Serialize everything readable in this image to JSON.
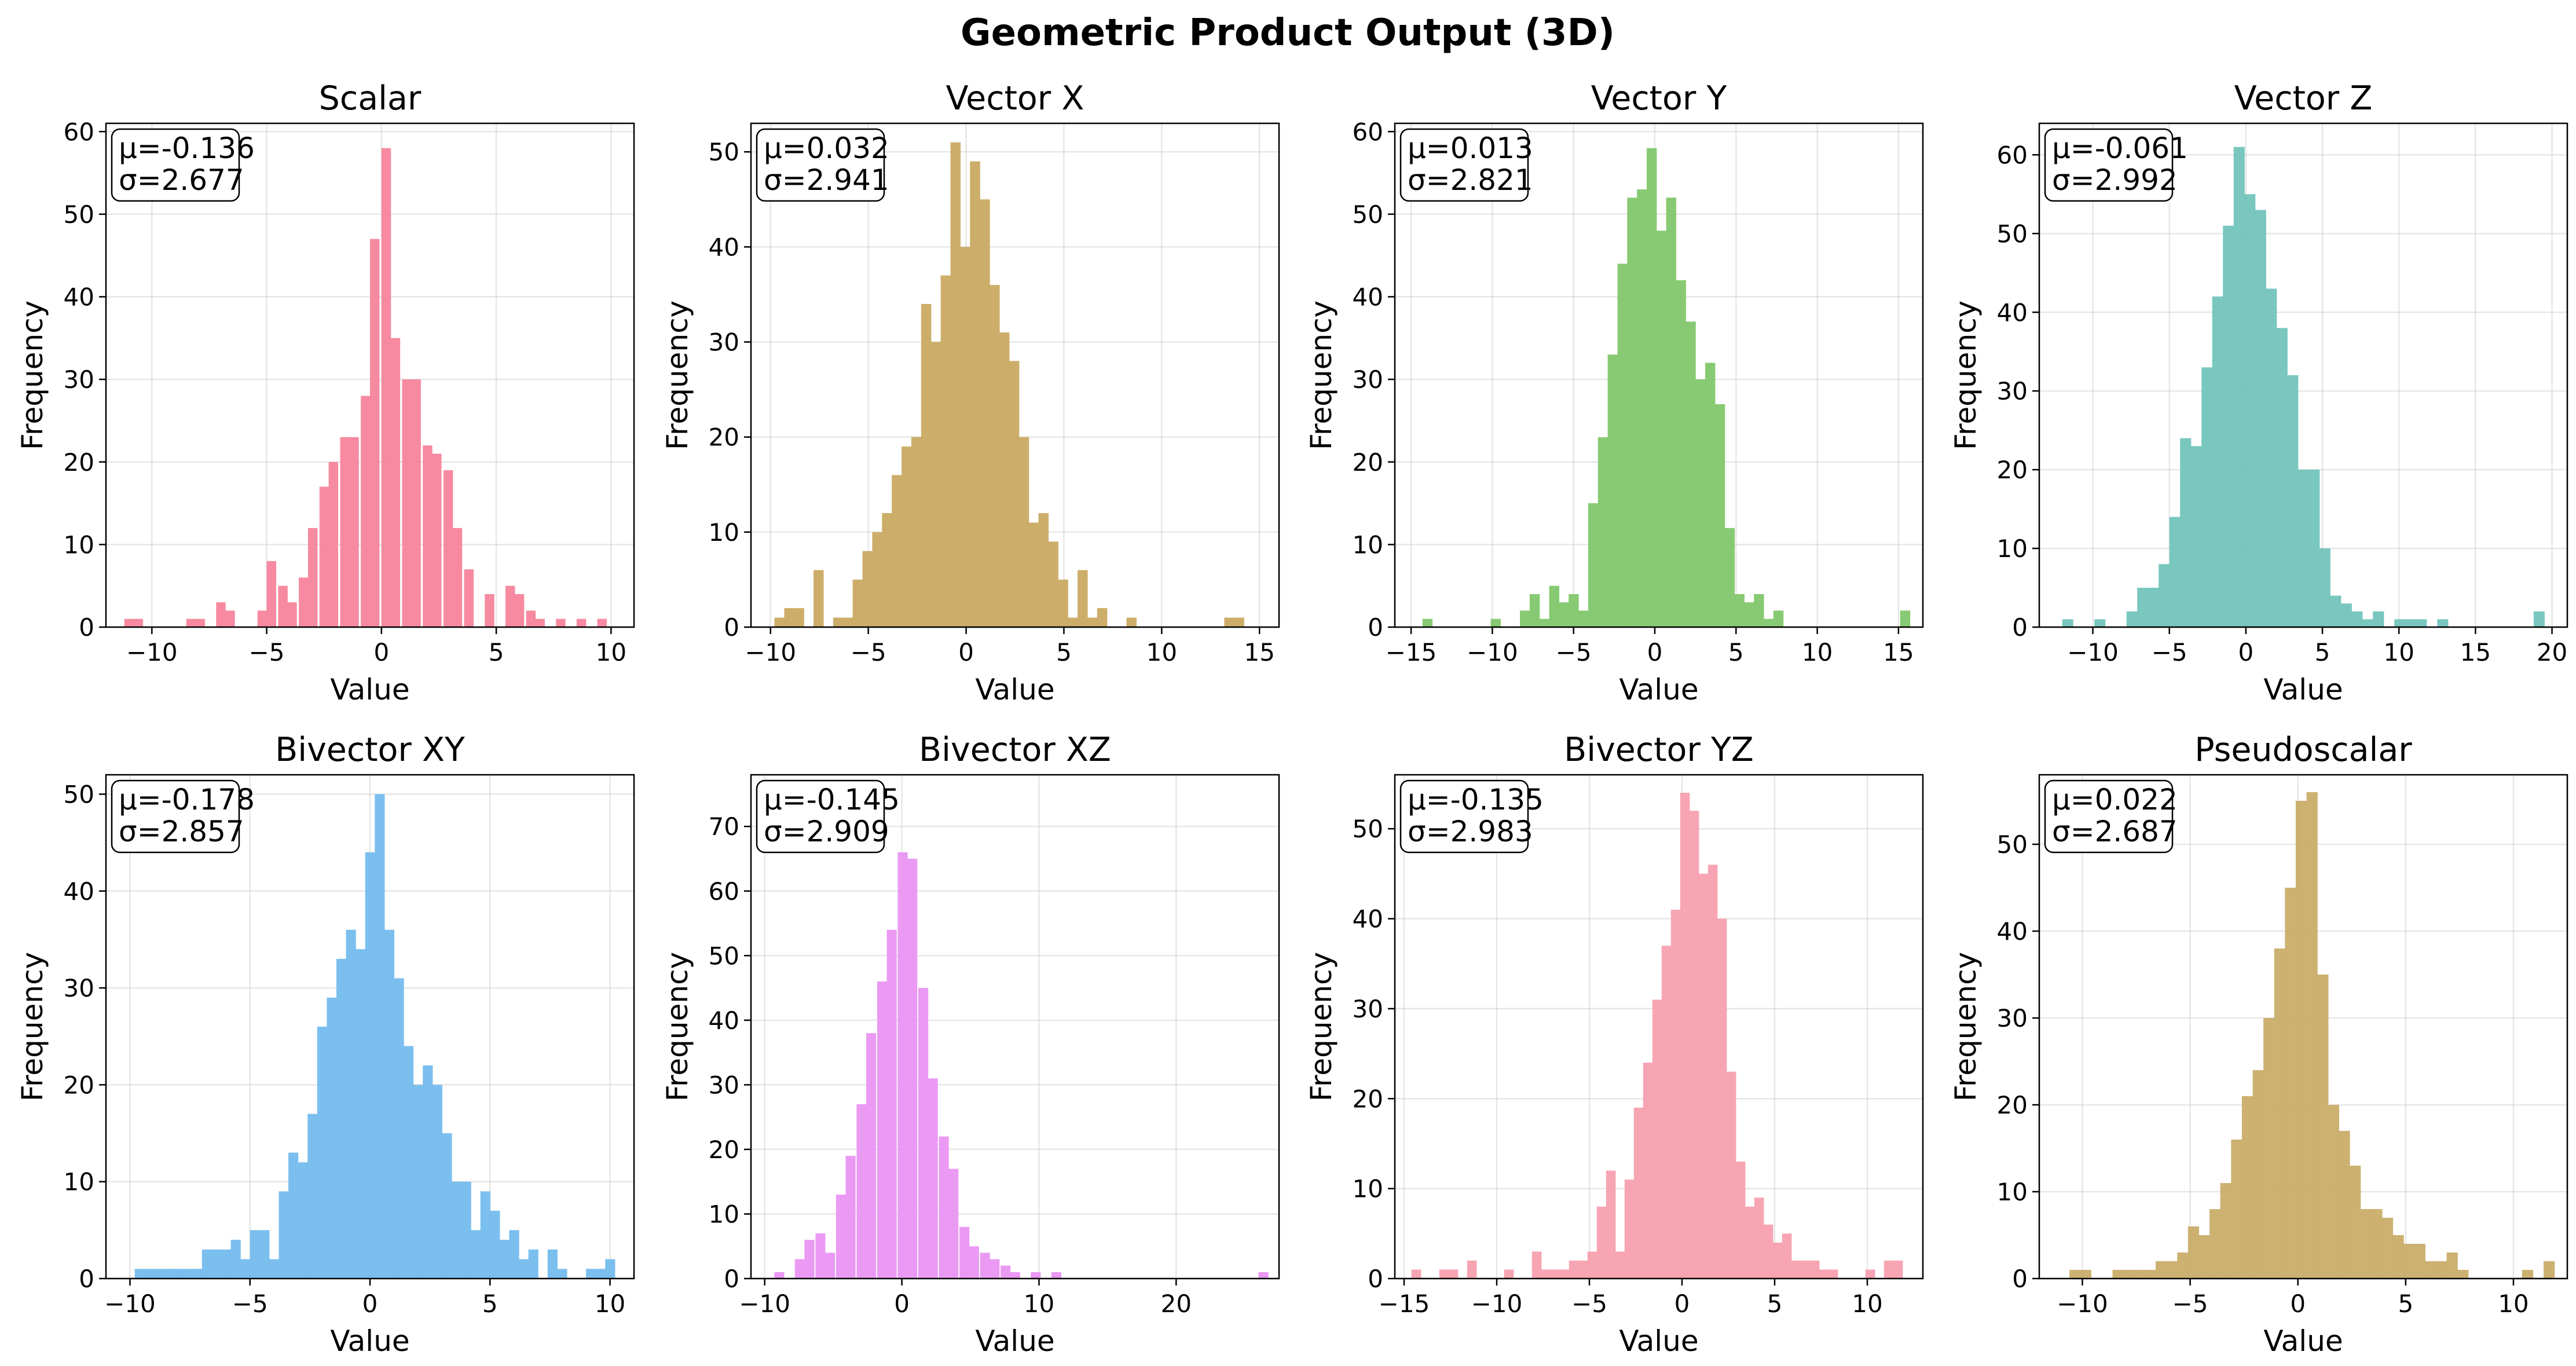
{
  "chart_data": [
    {
      "type": "bar",
      "panel": "histogram",
      "title": "Scalar",
      "xlabel": "Value",
      "ylabel": "Frequency",
      "color": "#F7849B",
      "xlim": [
        -12,
        11
      ],
      "ylim": [
        0,
        61
      ],
      "xticks": [
        -10,
        -5,
        0,
        5,
        10
      ],
      "yticks": [
        0,
        10,
        20,
        30,
        40,
        50,
        60
      ],
      "x": [
        -11.2,
        -10.8,
        -10.3,
        -9.9,
        -9.4,
        -9,
        -8.5,
        -8.1,
        -7.6,
        -7.2,
        -6.8,
        -6.3,
        -5.9,
        -5.4,
        -5,
        -4.5,
        -4.1,
        -3.6,
        -3.2,
        -2.7,
        -2.3,
        -1.8,
        -1.4,
        -0.9,
        -0.5,
        0,
        0.4,
        0.9,
        1.3,
        1.8,
        2.2,
        2.7,
        3.1,
        3.6,
        4,
        4.5,
        4.9,
        5.4,
        5.8,
        6.3,
        6.7,
        7.2,
        7.6,
        8.1,
        8.5,
        9,
        9.4,
        9.9
      ],
      "values": [
        1,
        1,
        0,
        0,
        0,
        0,
        1,
        1,
        0,
        3,
        2,
        0,
        0,
        2,
        8,
        5,
        3,
        6,
        12,
        17,
        20,
        23,
        23,
        28,
        47,
        58,
        35,
        30,
        30,
        22,
        21,
        19,
        12,
        7,
        0,
        4,
        0,
        5,
        4,
        2,
        1,
        0,
        1,
        0,
        1,
        0,
        1,
        0
      ],
      "stats": [
        "μ=-0.136",
        "σ=2.677"
      ]
    },
    {
      "type": "bar",
      "panel": "histogram",
      "title": "Vector X",
      "xlabel": "Value",
      "ylabel": "Frequency",
      "color": "#C9AA62",
      "xlim": [
        -11,
        16
      ],
      "ylim": [
        0,
        53
      ],
      "xticks": [
        -10,
        -5,
        0,
        5,
        10,
        15
      ],
      "yticks": [
        0,
        10,
        20,
        30,
        40,
        50
      ],
      "x": [
        -9.8,
        -9.3,
        -8.8,
        -8.3,
        -7.8,
        -7.3,
        -6.8,
        -6.3,
        -5.8,
        -5.3,
        -4.8,
        -4.3,
        -3.8,
        -3.3,
        -2.8,
        -2.3,
        -1.8,
        -1.3,
        -0.8,
        -0.3,
        0.2,
        0.7,
        1.2,
        1.7,
        2.2,
        2.7,
        3.2,
        3.7,
        4.2,
        4.7,
        5.2,
        5.7,
        6.2,
        6.7,
        7.2,
        7.7,
        8.2,
        8.7,
        9.2,
        9.7,
        10.2,
        10.7,
        11.2,
        11.7,
        12.2,
        12.7,
        13.2,
        13.7
      ],
      "values": [
        1,
        2,
        2,
        0,
        6,
        0,
        1,
        1,
        5,
        8,
        10,
        12,
        16,
        19,
        20,
        34,
        30,
        37,
        51,
        40,
        49,
        45,
        36,
        31,
        28,
        20,
        11,
        12,
        9,
        5,
        1,
        6,
        1,
        2,
        0,
        0,
        1,
        0,
        0,
        0,
        0,
        0,
        0,
        0,
        0,
        0,
        1,
        1
      ],
      "stats": [
        "μ=0.032",
        "σ=2.941"
      ]
    },
    {
      "type": "bar",
      "panel": "histogram",
      "title": "Vector Y",
      "xlabel": "Value",
      "ylabel": "Frequency",
      "color": "#82C76C",
      "xlim": [
        -16,
        16.5
      ],
      "ylim": [
        0,
        61
      ],
      "xticks": [
        -15,
        -10,
        -5,
        0,
        5,
        10,
        15
      ],
      "yticks": [
        0,
        10,
        20,
        30,
        40,
        50,
        60
      ],
      "x": [
        -14.3,
        -13.7,
        -13.1,
        -12.5,
        -11.9,
        -11.3,
        -10.7,
        -10.1,
        -9.5,
        -8.9,
        -8.3,
        -7.7,
        -7.1,
        -6.5,
        -5.9,
        -5.3,
        -4.7,
        -4.1,
        -3.5,
        -2.9,
        -2.3,
        -1.7,
        -1.1,
        -0.5,
        0.1,
        0.7,
        1.3,
        1.9,
        2.5,
        3.1,
        3.7,
        4.3,
        4.9,
        5.5,
        6.1,
        6.7,
        7.3,
        7.9,
        8.5,
        9.1,
        9.7,
        10.3,
        10.9,
        11.5,
        12.1,
        12.7,
        13.3,
        13.9,
        14.5,
        15.1
      ],
      "values": [
        1,
        0,
        0,
        0,
        0,
        0,
        0,
        1,
        0,
        0,
        2,
        4,
        1,
        5,
        3,
        4,
        2,
        15,
        23,
        33,
        44,
        52,
        53,
        58,
        48,
        52,
        42,
        37,
        30,
        32,
        27,
        12,
        4,
        3,
        4,
        1,
        2,
        0,
        0,
        0,
        0,
        0,
        0,
        0,
        0,
        0,
        0,
        0,
        0,
        2
      ],
      "stats": [
        "μ=0.013",
        "σ=2.821"
      ]
    },
    {
      "type": "bar",
      "panel": "histogram",
      "title": "Vector Z",
      "xlabel": "Value",
      "ylabel": "Frequency",
      "color": "#72C4BC",
      "xlim": [
        -13.5,
        21
      ],
      "ylim": [
        0,
        64
      ],
      "xticks": [
        -10,
        -5,
        0,
        5,
        10,
        15,
        20
      ],
      "yticks": [
        0,
        10,
        20,
        30,
        40,
        50,
        60
      ],
      "x": [
        -12,
        -11.3,
        -10.6,
        -9.9,
        -9.2,
        -8.5,
        -7.8,
        -7.1,
        -6.4,
        -5.7,
        -5,
        -4.3,
        -3.6,
        -2.9,
        -2.2,
        -1.5,
        -0.8,
        -0.1,
        0.6,
        1.3,
        2,
        2.7,
        3.4,
        4.1,
        4.8,
        5.5,
        6.2,
        6.9,
        7.6,
        8.3,
        9,
        9.7,
        10.4,
        11.1,
        11.8,
        12.5,
        13.2,
        13.9,
        14.6,
        15.3,
        16,
        16.7,
        17.4,
        18.1,
        18.8
      ],
      "values": [
        1,
        0,
        0,
        1,
        0,
        0,
        2,
        5,
        5,
        8,
        14,
        24,
        23,
        33,
        42,
        51,
        61,
        55,
        53,
        43,
        38,
        32,
        20,
        20,
        10,
        4,
        3,
        2,
        1,
        2,
        0,
        1,
        1,
        1,
        0,
        1,
        0,
        0,
        0,
        0,
        0,
        0,
        0,
        0,
        2
      ],
      "stats": [
        "μ=-0.061",
        "σ=2.992"
      ]
    },
    {
      "type": "bar",
      "panel": "histogram",
      "title": "Bivector XY",
      "xlabel": "Value",
      "ylabel": "Frequency",
      "color": "#74BCEE",
      "xlim": [
        -11,
        11
      ],
      "ylim": [
        0,
        52
      ],
      "xticks": [
        -10,
        -5,
        0,
        5,
        10
      ],
      "yticks": [
        0,
        10,
        20,
        30,
        40,
        50
      ],
      "x": [
        -9.8,
        -9.4,
        -9,
        -8.6,
        -8.2,
        -7.8,
        -7.4,
        -7,
        -6.6,
        -6.2,
        -5.8,
        -5.4,
        -5,
        -4.6,
        -4.2,
        -3.8,
        -3.4,
        -3,
        -2.6,
        -2.2,
        -1.8,
        -1.4,
        -1,
        -0.6,
        -0.2,
        0.2,
        0.6,
        1,
        1.4,
        1.8,
        2.2,
        2.6,
        3,
        3.4,
        3.8,
        4.2,
        4.6,
        5,
        5.4,
        5.8,
        6.2,
        6.6,
        7,
        7.4,
        7.8,
        8.2,
        8.6,
        9,
        9.4,
        9.8
      ],
      "values": [
        1,
        1,
        1,
        1,
        1,
        1,
        1,
        3,
        3,
        3,
        4,
        2,
        5,
        5,
        2,
        9,
        13,
        12,
        17,
        26,
        29,
        33,
        36,
        34,
        44,
        50,
        36,
        31,
        24,
        20,
        22,
        20,
        15,
        10,
        10,
        5,
        9,
        7,
        4,
        5,
        2,
        3,
        0,
        3,
        1,
        0,
        0,
        1,
        1,
        2
      ],
      "stats": [
        "μ=-0.178",
        "σ=2.857"
      ]
    },
    {
      "type": "bar",
      "panel": "histogram",
      "title": "Bivector XZ",
      "xlabel": "Value",
      "ylabel": "Frequency",
      "color": "#EA95F3",
      "xlim": [
        -11,
        27.5
      ],
      "ylim": [
        0,
        78
      ],
      "xticks": [
        -10,
        0,
        10,
        20
      ],
      "yticks": [
        0,
        10,
        20,
        30,
        40,
        50,
        60,
        70
      ],
      "x": [
        -9.3,
        -8.6,
        -7.8,
        -7.1,
        -6.3,
        -5.6,
        -4.8,
        -4.1,
        -3.3,
        -2.6,
        -1.8,
        -1.1,
        -0.3,
        0.4,
        1.2,
        1.9,
        2.7,
        3.4,
        4.2,
        4.9,
        5.7,
        6.4,
        7.2,
        7.9,
        8.7,
        9.4,
        10.2,
        10.9,
        11.7,
        12.4,
        13.2,
        13.9,
        14.7,
        15.4,
        16.2,
        16.9,
        17.7,
        18.4,
        19.2,
        19.9,
        20.7,
        21.4,
        22.2,
        22.9,
        23.7,
        24.4,
        25.2,
        26
      ],
      "values": [
        1,
        0,
        3,
        6,
        7,
        4,
        13,
        19,
        27,
        38,
        46,
        54,
        66,
        65,
        45,
        31,
        22,
        17,
        8,
        5,
        4,
        3,
        2,
        1,
        0,
        1,
        0,
        1,
        0,
        0,
        0,
        0,
        0,
        0,
        0,
        0,
        0,
        0,
        0,
        0,
        0,
        0,
        0,
        0,
        0,
        0,
        0,
        1
      ],
      "stats": [
        "μ=-0.145",
        "σ=2.909"
      ]
    },
    {
      "type": "bar",
      "panel": "histogram",
      "title": "Bivector YZ",
      "xlabel": "Value",
      "ylabel": "Frequency",
      "color": "#F7A0AF",
      "xlim": [
        -15.5,
        13
      ],
      "ylim": [
        0,
        56
      ],
      "xticks": [
        -15,
        -10,
        -5,
        0,
        5,
        10
      ],
      "yticks": [
        0,
        10,
        20,
        30,
        40,
        50
      ],
      "x": [
        -14.6,
        -14.1,
        -13.6,
        -13.1,
        -12.6,
        -12.1,
        -11.6,
        -11.1,
        -10.6,
        -10.1,
        -9.6,
        -9.1,
        -8.6,
        -8.1,
        -7.6,
        -7.1,
        -6.6,
        -6.1,
        -5.6,
        -5.1,
        -4.6,
        -4.1,
        -3.6,
        -3.1,
        -2.6,
        -2.1,
        -1.6,
        -1.1,
        -0.6,
        -0.1,
        0.4,
        0.9,
        1.4,
        1.9,
        2.4,
        2.9,
        3.4,
        3.9,
        4.4,
        4.9,
        5.4,
        5.9,
        6.4,
        6.9,
        7.4,
        7.9,
        8.4,
        8.9,
        9.4,
        9.9,
        10.4,
        10.9,
        11.4
      ],
      "values": [
        1,
        0,
        0,
        1,
        1,
        0,
        2,
        0,
        0,
        0,
        1,
        0,
        0,
        3,
        1,
        1,
        1,
        2,
        2,
        3,
        8,
        12,
        3,
        11,
        19,
        24,
        31,
        37,
        41,
        54,
        52,
        45,
        46,
        40,
        23,
        13,
        8,
        9,
        6,
        4,
        5,
        2,
        2,
        2,
        1,
        1,
        0,
        0,
        0,
        1,
        0,
        2,
        2
      ],
      "stats": [
        "μ=-0.135",
        "σ=2.983"
      ]
    },
    {
      "type": "bar",
      "panel": "histogram",
      "title": "Pseudoscalar",
      "xlabel": "Value",
      "ylabel": "Frequency",
      "color": "#C9AD69",
      "xlim": [
        -12,
        12.5
      ],
      "ylim": [
        0,
        58
      ],
      "xticks": [
        -10,
        -5,
        0,
        5,
        10
      ],
      "yticks": [
        0,
        10,
        20,
        30,
        40,
        50
      ],
      "x": [
        -10.6,
        -10.1,
        -9.6,
        -9.1,
        -8.6,
        -8.1,
        -7.6,
        -7.1,
        -6.6,
        -6.1,
        -5.6,
        -5.1,
        -4.6,
        -4.1,
        -3.6,
        -3.1,
        -2.6,
        -2.1,
        -1.6,
        -1.1,
        -0.6,
        -0.1,
        0.4,
        0.9,
        1.4,
        1.9,
        2.4,
        2.9,
        3.4,
        3.9,
        4.4,
        4.9,
        5.4,
        5.9,
        6.4,
        6.9,
        7.4,
        7.9,
        8.4,
        8.9,
        9.4,
        9.9,
        10.4,
        10.9,
        11.4
      ],
      "values": [
        1,
        1,
        0,
        0,
        1,
        1,
        1,
        1,
        2,
        2,
        3,
        6,
        5,
        8,
        11,
        16,
        21,
        24,
        30,
        38,
        45,
        55,
        56,
        35,
        20,
        17,
        13,
        8,
        8,
        7,
        5,
        4,
        4,
        2,
        2,
        3,
        1,
        0,
        0,
        0,
        0,
        0,
        1,
        0,
        2
      ],
      "stats": [
        "μ=0.022",
        "σ=2.687"
      ]
    }
  ],
  "figure": {
    "suptitle": "Geometric Product Output (3D)"
  }
}
